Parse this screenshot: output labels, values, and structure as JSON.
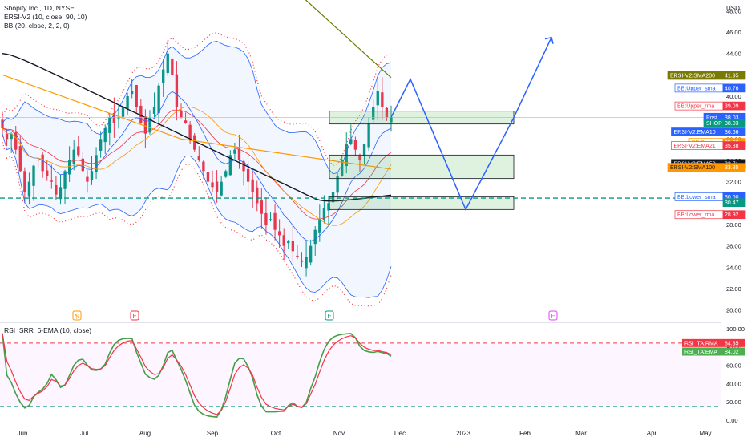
{
  "legend": {
    "title": "Shopify Inc., 1D, NYSE",
    "ind1": "ERSI-V2 (10, close, 90, 10)",
    "ind2": "BB (20, close, 2, 2, 0)"
  },
  "rsi_legend": "RSI_SRR_6-EMA (10, close)",
  "price_axis": {
    "unit": "USD",
    "ticks": [
      "48.00",
      "46.00",
      "44.00",
      "42.00",
      "40.00",
      "38.00",
      "36.00",
      "34.00",
      "32.00",
      "30.00",
      "28.00",
      "26.00",
      "24.00",
      "22.00",
      "20.00"
    ]
  },
  "rsi_axis": {
    "ticks": [
      "100.00",
      "80.00",
      "60.00",
      "40.00",
      "20.00",
      "0.00"
    ]
  },
  "time_axis": {
    "ticks": [
      "Jun",
      "Jul",
      "Aug",
      "Sep",
      "Oct",
      "Nov",
      "Dec",
      "2023",
      "Feb",
      "Mar",
      "Apr",
      "May"
    ]
  },
  "price_labels": [
    {
      "text": "ERSI-V2:SMA200",
      "value": "41.95",
      "bg": "#7a7a00",
      "fg": "#ffffff",
      "border": "#7a7a00"
    },
    {
      "text": "BB:Upper_sma",
      "value": "40.76",
      "bg": "#ffffff",
      "fg": "#2962ff",
      "border": "#2962ff"
    },
    {
      "text": "BB:Upper_rma",
      "value": "39.09",
      "bg": "#ffffff",
      "fg": "#f23645",
      "border": "#f23645"
    },
    {
      "text": "Post",
      "value": "38.03",
      "bg": "#2962ff",
      "fg": "#ffffff",
      "border": "#2962ff"
    },
    {
      "text": "SHOP",
      "value": "38.03",
      "bg": "#089981",
      "fg": "#ffffff",
      "border": "#089981"
    },
    {
      "text": "ERSI-V2:EMA10",
      "value": "36.66",
      "bg": "#2962ff",
      "fg": "#ffffff",
      "border": "#2962ff"
    },
    {
      "text": "BB:Basis",
      "value": "35.68",
      "bg": "#ffffff",
      "fg": "#ff9800",
      "border": "#ff9800"
    },
    {
      "text": "ERSI-V2:EMA21",
      "value": "35.38",
      "bg": "#ffffff",
      "fg": "#f23645",
      "border": "#f23645"
    },
    {
      "text": "ERSI-V2:EMA50",
      "value": "33.71",
      "bg": "#131722",
      "fg": "#ffffff",
      "border": "#131722"
    },
    {
      "text": "ERSI-V2:SMA100",
      "value": "33.35",
      "bg": "#ff9800",
      "fg": "#131722",
      "border": "#ff9800"
    },
    {
      "text": "BB:Lower_sma",
      "value": "30.60",
      "bg": "#ffffff",
      "fg": "#2962ff",
      "border": "#2962ff"
    },
    {
      "text": "",
      "value": "30.47",
      "bg": "#089981",
      "fg": "#ffffff",
      "border": "#089981"
    },
    {
      "text": "BB:Lower_rma",
      "value": "28.92",
      "bg": "#ffffff",
      "fg": "#f23645",
      "border": "#f23645"
    }
  ],
  "rsi_labels": [
    {
      "text": "RSI_TA:RMA",
      "value": "84.35",
      "bg": "#f23645",
      "fg": "#ffffff"
    },
    {
      "text": "RSI_TA:EMA",
      "value": "84.02",
      "bg": "#4caf50",
      "fg": "#ffffff"
    }
  ],
  "event_markers": [
    {
      "glyph": "$",
      "color": "#ff9800",
      "x_label": "Jun"
    },
    {
      "glyph": "E",
      "color": "#f23645",
      "x_label": "Jul"
    },
    {
      "glyph": "E",
      "color": "#089981",
      "x_label": "Nov"
    },
    {
      "glyph": "E",
      "color": "#e040fb",
      "x_label": "Feb"
    }
  ],
  "chart_data": [
    {
      "type": "candlestick",
      "title": "Shopify Inc., 1D, NYSE",
      "ylim": [
        19,
        49
      ],
      "y_unit": "USD",
      "x": "daily, late May 2022 to late Nov 2022",
      "close_series": [
        37,
        36,
        36.5,
        35,
        33,
        31,
        32,
        33.5,
        34,
        33,
        32.5,
        32,
        30.8,
        31.5,
        33,
        34,
        35,
        34.5,
        33,
        32,
        33,
        34.5,
        36,
        37,
        38,
        37.5,
        38,
        39,
        40,
        40.5,
        39,
        37.5,
        36.5,
        38,
        39,
        41,
        42.5,
        44,
        42,
        39,
        38,
        37.5,
        36,
        35,
        34,
        33,
        32,
        31.5,
        31,
        32,
        33,
        34.5,
        35,
        34,
        33,
        32,
        31,
        30,
        29,
        28,
        28.5,
        27.5,
        27,
        26,
        26.5,
        25.5,
        25,
        24.5,
        25,
        26,
        27.5,
        28.5,
        29.5,
        30,
        31,
        32.5,
        34,
        35.5,
        36,
        35,
        34,
        35.5,
        37.5,
        39,
        40.5,
        39,
        38,
        38.03
      ],
      "series": [
        {
          "name": "ERSI-V2:SMA200",
          "last": 41.95,
          "color": "#6b7d00"
        },
        {
          "name": "BB:Upper_sma",
          "last": 40.76,
          "color": "#2962ff"
        },
        {
          "name": "BB:Upper_rma",
          "last": 39.09,
          "color": "#f23645"
        },
        {
          "name": "ERSI-V2:EMA10",
          "last": 36.66,
          "color": "#2962ff"
        },
        {
          "name": "BB:Basis",
          "last": 35.68,
          "color": "#ff9800"
        },
        {
          "name": "ERSI-V2:EMA21",
          "last": 35.38,
          "color": "#f23645"
        },
        {
          "name": "ERSI-V2:EMA50",
          "last": 33.71,
          "color": "#131722"
        },
        {
          "name": "ERSI-V2:SMA100",
          "last": 33.35,
          "color": "#ff9800"
        },
        {
          "name": "BB:Lower_sma",
          "last": 30.6,
          "color": "#2962ff"
        },
        {
          "name": "BB:Lower_rma",
          "last": 28.92,
          "color": "#f23645"
        }
      ],
      "zones": [
        {
          "y_low": 37.4,
          "y_high": 38.6
        },
        {
          "y_low": 32.3,
          "y_high": 34.5
        },
        {
          "y_low": 29.4,
          "y_high": 30.6
        }
      ],
      "horizontal_line": 30.47,
      "projection_path_y": [
        38.03,
        41.6,
        29.4,
        38.0,
        45.5
      ]
    },
    {
      "type": "line",
      "title": "RSI_SRR_6-EMA (10, close)",
      "ylim": [
        0,
        100
      ],
      "series": [
        {
          "name": "RSI_TA:RMA",
          "color": "#f23645",
          "last": 84.35
        },
        {
          "name": "RSI_TA:EMA",
          "color": "#43a047",
          "last": 84.02
        }
      ],
      "reference_lines": [
        84.35,
        15
      ]
    }
  ]
}
